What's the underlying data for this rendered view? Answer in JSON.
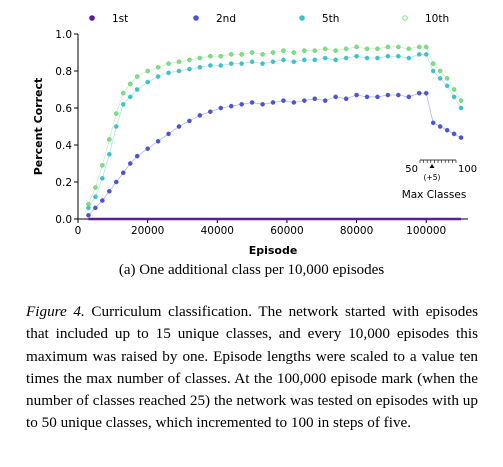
{
  "chart_data": {
    "type": "scatter",
    "xlabel": "Episode",
    "ylabel": "Percent Correct",
    "xlim": [
      0,
      112000
    ],
    "ylim": [
      0.0,
      1.0
    ],
    "xticks": [
      0,
      20000,
      40000,
      60000,
      80000,
      100000
    ],
    "yticks": [
      0.0,
      0.2,
      0.4,
      0.6,
      0.8,
      1.0
    ],
    "xtick_labels": [
      "0",
      "20000",
      "40000",
      "60000",
      "80000",
      "100000"
    ],
    "ytick_labels": [
      "0.0",
      "0.2",
      "0.4",
      "0.6",
      "0.8",
      "1.0"
    ],
    "legend_position": "top",
    "grid": false,
    "series": [
      {
        "name": "1st",
        "color": "#5a1e9a",
        "x": [
          3000,
          110000
        ],
        "y": [
          0.0,
          0.0
        ]
      },
      {
        "name": "2nd",
        "color": "#4a55d6",
        "x": [
          3000,
          5000,
          7000,
          9000,
          11000,
          13000,
          15000,
          17000,
          20000,
          23000,
          26000,
          29000,
          32000,
          35000,
          38000,
          41000,
          44000,
          47000,
          50000,
          53000,
          56000,
          59000,
          62000,
          65000,
          68000,
          71000,
          74000,
          77000,
          80000,
          83000,
          86000,
          89000,
          92000,
          95000,
          98000,
          100000,
          102000,
          104000,
          106000,
          108000,
          110000
        ],
        "y": [
          0.02,
          0.06,
          0.1,
          0.15,
          0.2,
          0.25,
          0.3,
          0.34,
          0.38,
          0.42,
          0.46,
          0.5,
          0.53,
          0.56,
          0.58,
          0.6,
          0.61,
          0.62,
          0.63,
          0.62,
          0.63,
          0.64,
          0.63,
          0.64,
          0.65,
          0.64,
          0.66,
          0.65,
          0.67,
          0.66,
          0.66,
          0.67,
          0.67,
          0.66,
          0.68,
          0.68,
          0.52,
          0.5,
          0.48,
          0.46,
          0.44
        ]
      },
      {
        "name": "5th",
        "color": "#3fc1c9",
        "x": [
          3000,
          5000,
          7000,
          9000,
          11000,
          13000,
          15000,
          17000,
          20000,
          23000,
          26000,
          29000,
          32000,
          35000,
          38000,
          41000,
          44000,
          47000,
          50000,
          53000,
          56000,
          59000,
          62000,
          65000,
          68000,
          71000,
          74000,
          77000,
          80000,
          83000,
          86000,
          89000,
          92000,
          95000,
          98000,
          100000,
          102000,
          104000,
          106000,
          108000,
          110000
        ],
        "y": [
          0.06,
          0.12,
          0.22,
          0.35,
          0.5,
          0.62,
          0.66,
          0.7,
          0.74,
          0.77,
          0.79,
          0.8,
          0.81,
          0.82,
          0.83,
          0.83,
          0.84,
          0.84,
          0.85,
          0.84,
          0.85,
          0.86,
          0.85,
          0.86,
          0.86,
          0.87,
          0.86,
          0.87,
          0.88,
          0.87,
          0.87,
          0.88,
          0.88,
          0.87,
          0.89,
          0.89,
          0.8,
          0.76,
          0.72,
          0.66,
          0.6
        ]
      },
      {
        "name": "10th",
        "color": "#7ee082",
        "x": [
          3000,
          5000,
          7000,
          9000,
          11000,
          13000,
          15000,
          17000,
          20000,
          23000,
          26000,
          29000,
          32000,
          35000,
          38000,
          41000,
          44000,
          47000,
          50000,
          53000,
          56000,
          59000,
          62000,
          65000,
          68000,
          71000,
          74000,
          77000,
          80000,
          83000,
          86000,
          89000,
          92000,
          95000,
          98000,
          100000,
          102000,
          104000,
          106000,
          108000,
          110000
        ],
        "y": [
          0.08,
          0.17,
          0.29,
          0.43,
          0.57,
          0.68,
          0.73,
          0.77,
          0.8,
          0.82,
          0.84,
          0.85,
          0.86,
          0.87,
          0.88,
          0.88,
          0.89,
          0.89,
          0.9,
          0.89,
          0.9,
          0.91,
          0.9,
          0.91,
          0.91,
          0.92,
          0.91,
          0.92,
          0.93,
          0.92,
          0.92,
          0.93,
          0.93,
          0.92,
          0.93,
          0.93,
          0.84,
          0.8,
          0.76,
          0.7,
          0.64
        ]
      }
    ],
    "inset": {
      "left_label": "50",
      "right_label": "100",
      "step_label": "(+5)",
      "title": "Max Classes"
    }
  },
  "subcaption": "(a) One additional class per 10,000 episodes",
  "caption": {
    "label": "Figure 4.",
    "text": " Curriculum classification.  The network started with episodes that included up to 15 unique classes, and every 10,000 episodes this maximum was raised by one. Episode lengths were scaled to a value ten times the max number of classes. At the 100,000 episode mark (when the number of classes reached 25) the network was tested on episodes with up to 50 unique classes, which incremented to 100 in steps of five."
  }
}
